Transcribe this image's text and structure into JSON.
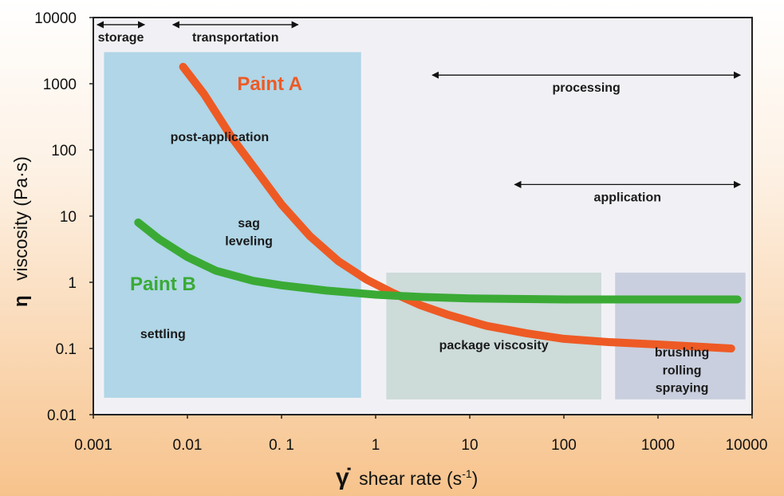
{
  "chart_data": {
    "type": "line",
    "xscale": "log",
    "yscale": "log",
    "xlim": [
      0.001,
      10000
    ],
    "ylim": [
      0.01,
      10000
    ],
    "xlabel": {
      "symbol": "γ̇",
      "text": "shear rate (s",
      "sup": "-1",
      "close": ")"
    },
    "ylabel": {
      "symbol": "η",
      "text": "viscosity (Pa·s)"
    },
    "x_tick_labels": [
      "0.001",
      "0.01",
      "0. 1",
      "1",
      "10",
      "100",
      "1000",
      "10000"
    ],
    "y_tick_labels": [
      "10000",
      "1000",
      "100",
      "10",
      "1",
      "0.1",
      "0.01"
    ],
    "series": [
      {
        "name": "Paint A",
        "color": "#ee5a24",
        "x": [
          0.009,
          0.015,
          0.03,
          0.06,
          0.1,
          0.2,
          0.4,
          0.8,
          1.5,
          3,
          6,
          15,
          40,
          100,
          300,
          1000,
          6000
        ],
        "y": [
          1800,
          700,
          150,
          40,
          15,
          5,
          2.1,
          1.1,
          0.7,
          0.45,
          0.32,
          0.22,
          0.17,
          0.14,
          0.125,
          0.115,
          0.1
        ]
      },
      {
        "name": "Paint B",
        "color": "#3aaa35",
        "x": [
          0.003,
          0.005,
          0.01,
          0.02,
          0.05,
          0.1,
          0.3,
          1,
          3,
          10,
          100,
          1000,
          7000
        ],
        "y": [
          8,
          4.5,
          2.4,
          1.5,
          1.05,
          0.9,
          0.75,
          0.65,
          0.6,
          0.57,
          0.55,
          0.55,
          0.55
        ]
      }
    ],
    "regions": [
      {
        "name": "low-shear-region",
        "x": [
          0.0013,
          0.7
        ],
        "y": [
          0.018,
          3000
        ],
        "color": "#a9d3e6"
      },
      {
        "name": "package-viscosity-region",
        "x": [
          1.3,
          250
        ],
        "y": [
          0.017,
          1.4
        ],
        "color": "#c9d8d6"
      },
      {
        "name": "application-region",
        "x": [
          350,
          8500
        ],
        "y": [
          0.017,
          1.4
        ],
        "color": "#c4cbdb"
      }
    ],
    "series_labels": [
      {
        "name": "paint-a-label",
        "text": "Paint A",
        "color": "#ee5a24",
        "x": 0.075,
        "y": 1000
      },
      {
        "name": "paint-b-label",
        "text": "Paint B",
        "color": "#3aaa35",
        "x": 0.0055,
        "y": 0.95
      }
    ],
    "annotations": [
      {
        "name": "post-application-label",
        "text": "post-application",
        "x": 0.022,
        "y": 160
      },
      {
        "name": "sag-label",
        "text": "sag",
        "x": 0.045,
        "y": 8
      },
      {
        "name": "leveling-label",
        "text": "leveling",
        "x": 0.045,
        "y": 4.3
      },
      {
        "name": "settling-label",
        "text": "settling",
        "x": 0.0055,
        "y": 0.17
      },
      {
        "name": "package-viscosity-label",
        "text": "package viscosity",
        "x": 18,
        "y": 0.115
      },
      {
        "name": "brushing-label",
        "text": "brushing",
        "x": 1800,
        "y": 0.09
      },
      {
        "name": "rolling-label",
        "text": "rolling",
        "x": 1800,
        "y": 0.048
      },
      {
        "name": "spraying-label",
        "text": "spraying",
        "x": 1800,
        "y": 0.026
      }
    ],
    "ranges": [
      {
        "name": "storage-range",
        "text": "storage",
        "x": [
          0.0011,
          0.0035
        ],
        "y": 7800
      },
      {
        "name": "transportation-range",
        "text": "transportation",
        "x": [
          0.007,
          0.15
        ],
        "y": 7800
      },
      {
        "name": "processing-range",
        "text": "processing",
        "x": [
          4,
          7500
        ],
        "y": 1350
      },
      {
        "name": "application-range",
        "text": "application",
        "x": [
          30,
          7500
        ],
        "y": 30
      }
    ]
  }
}
